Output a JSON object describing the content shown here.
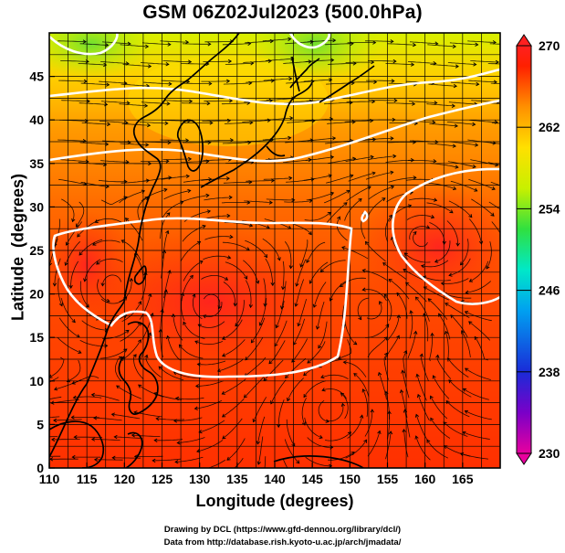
{
  "title": "GSM 06Z02Jul2023 (500.0hPa)",
  "credits": {
    "line1": "Drawing by DCL (https://www.gfd-dennou.org/library/dcl/)",
    "line2": "Data from http://database.rish.kyoto-u.ac.jp/arch/jmadata/"
  },
  "chart_data": {
    "type": "heatmap",
    "title": "GSM 06Z02Jul2023 (500.0hPa)",
    "xlabel": "Longitude (degrees)",
    "ylabel": "Latitude  (degrees)",
    "xlim": [
      110,
      170
    ],
    "ylim": [
      0,
      50
    ],
    "x_ticks": [
      "110",
      "115",
      "120",
      "125",
      "130",
      "135",
      "140",
      "145",
      "150",
      "155",
      "160",
      "165"
    ],
    "y_ticks": [
      "0",
      "5",
      "10",
      "15",
      "20",
      "25",
      "30",
      "35",
      "40",
      "45"
    ],
    "grid": true,
    "colorbar": {
      "min": 230,
      "max": 270,
      "ticks": [
        "270",
        "262",
        "254",
        "246",
        "238",
        "230"
      ],
      "colors": [
        "#e8009e",
        "#7a00c8",
        "#1a2bd8",
        "#00a0f0",
        "#00e8c8",
        "#30e040",
        "#c8f000",
        "#ffe000",
        "#ff9000",
        "#ff2000",
        "#ff2020"
      ]
    },
    "overlays": [
      "streamlines",
      "white contour lines",
      "coastlines"
    ]
  },
  "colors": {
    "field_warm": "#ff3a00",
    "field_mid": "#ff8a00",
    "field_cool": "#c8f000",
    "contour": "#ffffff",
    "coast": "#000000"
  }
}
